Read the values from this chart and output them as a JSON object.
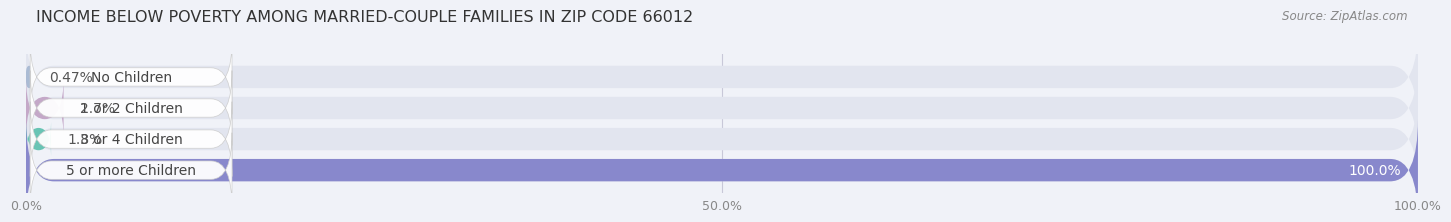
{
  "title": "INCOME BELOW POVERTY AMONG MARRIED-COUPLE FAMILIES IN ZIP CODE 66012",
  "source": "Source: ZipAtlas.com",
  "categories": [
    "No Children",
    "1 or 2 Children",
    "3 or 4 Children",
    "5 or more Children"
  ],
  "values": [
    0.47,
    2.7,
    1.8,
    100.0
  ],
  "bar_colors": [
    "#aabbd4",
    "#c4a8c8",
    "#68c4b4",
    "#8888cc"
  ],
  "value_labels": [
    "0.47%",
    "2.7%",
    "1.8%",
    "100.0%"
  ],
  "xlim": [
    0,
    100
  ],
  "xticks": [
    0.0,
    50.0,
    100.0
  ],
  "xticklabels": [
    "0.0%",
    "50.0%",
    "100.0%"
  ],
  "bg_color": "#f0f2f8",
  "bar_bg_color": "#e2e5ef",
  "title_fontsize": 11.5,
  "tick_fontsize": 9,
  "label_fontsize": 10,
  "value_fontsize": 10,
  "fig_width": 14.06,
  "fig_height": 2.33
}
